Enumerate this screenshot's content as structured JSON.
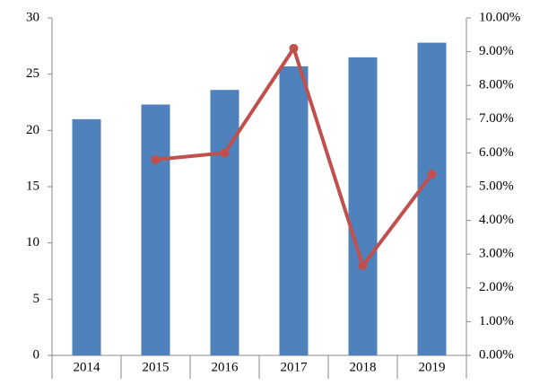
{
  "chart_data": {
    "type": "bar_line",
    "categories": [
      "2014",
      "2015",
      "2016",
      "2017",
      "2018",
      "2019"
    ],
    "series": [
      {
        "type": "bar",
        "color": "#4f81bd",
        "values": [
          21.0,
          22.3,
          23.6,
          25.7,
          26.5,
          27.8
        ]
      },
      {
        "type": "line",
        "axis": "y2",
        "color": "#c0504d",
        "values": [
          null,
          5.8,
          6.0,
          9.1,
          2.66,
          5.37
        ]
      }
    ],
    "ylim": [
      0,
      30
    ],
    "yticks": [
      0,
      5,
      10,
      15,
      20,
      25,
      30
    ],
    "y2lim": [
      0,
      10
    ],
    "y2ticks": [
      {
        "value": 0,
        "label": "0.00%"
      },
      {
        "value": 1,
        "label": "1.00%"
      },
      {
        "value": 2,
        "label": "2.00%"
      },
      {
        "value": 3,
        "label": "3.00%"
      },
      {
        "value": 4,
        "label": "4.00%"
      },
      {
        "value": 5,
        "label": "5.00%"
      },
      {
        "value": 6,
        "label": "6.00%"
      },
      {
        "value": 7,
        "label": "7.00%"
      },
      {
        "value": 8,
        "label": "8.00%"
      },
      {
        "value": 9,
        "label": "9.00%"
      },
      {
        "value": 10,
        "label": "10.00%"
      }
    ]
  }
}
